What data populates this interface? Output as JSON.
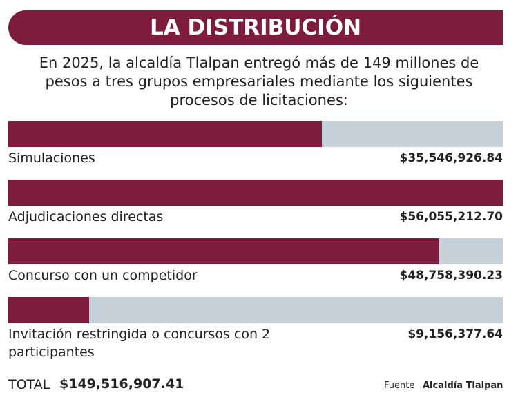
{
  "chart_data": {
    "type": "bar",
    "orientation": "horizontal",
    "title": "LA DISTRIBUCIÓN",
    "subtitle": "En 2025, la alcaldía Tlalpan entregó más de 149 millones de pesos a tres grupos empresariales mediante los siguientes procesos de licitaciones:",
    "categories": [
      "Simulaciones",
      "Adjudicaciones directas",
      "Concurso con un competidor",
      "Invitación restringida o concursos con 2 participantes"
    ],
    "values": [
      35546926.84,
      56055212.7,
      48758390.23,
      9156377.64
    ],
    "value_labels": [
      "$35,546,926.84",
      "$56,055,212.70",
      "$48,758,390.23",
      "$9,156,377.64"
    ],
    "color": "#7e1c3d",
    "track_color": "#c6d0d8",
    "xlim": [
      0,
      56055212.7
    ],
    "total_label": "TOTAL",
    "total": "$149,516,907.41",
    "source_label": "Fuente",
    "source": "Alcaldía Tlalpan"
  }
}
